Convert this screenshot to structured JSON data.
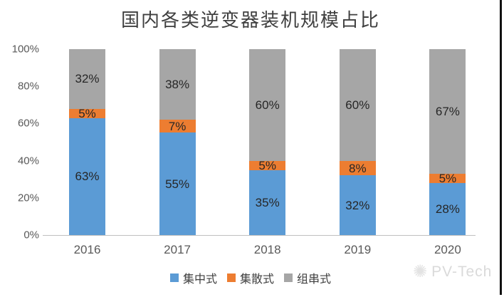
{
  "chart_data": {
    "type": "bar",
    "stacked": true,
    "title": "国内各类逆变器装机规模占比",
    "categories": [
      "2016",
      "2017",
      "2018",
      "2019",
      "2020"
    ],
    "series": [
      {
        "key": "centralized",
        "name": "集中式",
        "color": "#5b9bd5",
        "values": [
          63,
          55,
          35,
          32,
          28
        ]
      },
      {
        "key": "distributed",
        "name": "集散式",
        "color": "#ed7d31",
        "values": [
          5,
          7,
          5,
          8,
          5
        ]
      },
      {
        "key": "string",
        "name": "组串式",
        "color": "#a6a6a6",
        "values": [
          32,
          38,
          60,
          60,
          67
        ]
      }
    ],
    "y_ticks": [
      "0%",
      "20%",
      "40%",
      "60%",
      "80%",
      "100%"
    ],
    "ylim": [
      0,
      100
    ],
    "grid": false,
    "legend_position": "bottom",
    "data_label_suffix": "%",
    "axis_line_color": "#bfbfbf"
  },
  "watermark": {
    "icon": "pv-tech-sun-logo",
    "icon_glyph": "✺",
    "text": "PV-Tech"
  }
}
